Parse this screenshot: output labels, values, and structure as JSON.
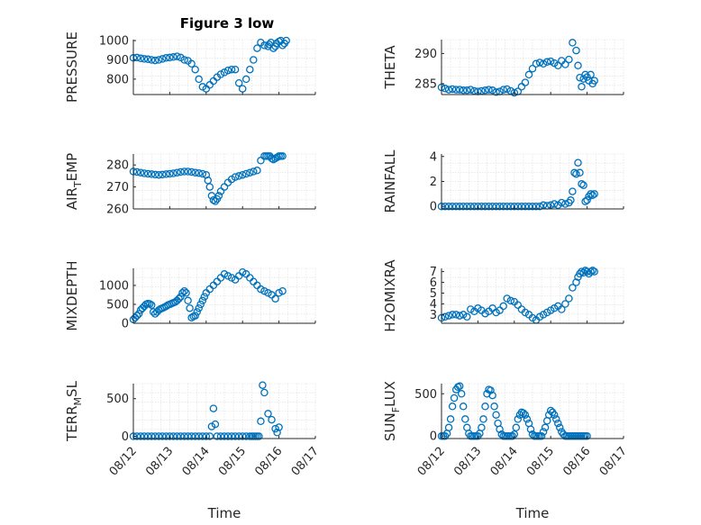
{
  "figure_title": "Figure 3 low",
  "colors": {
    "marker": "#0072BD",
    "axis": "#262626",
    "grid": "#dcdcdc"
  },
  "chart_data": [
    {
      "id": "pressure",
      "type": "scatter",
      "title": "Figure 3 low",
      "ylabel": "PRESSURE",
      "xlabel": "",
      "xlim": [
        0,
        5
      ],
      "ylim": [
        720,
        1005
      ],
      "yticks": [
        800,
        900,
        1000
      ],
      "xticks": [],
      "grid": true,
      "x": [
        0.0,
        0.1,
        0.2,
        0.3,
        0.4,
        0.5,
        0.6,
        0.7,
        0.8,
        0.9,
        1.0,
        1.1,
        1.2,
        1.3,
        1.4,
        1.5,
        1.6,
        1.7,
        1.8,
        1.9,
        2.0,
        2.1,
        2.2,
        2.3,
        2.4,
        2.5,
        2.6,
        2.7,
        2.8,
        2.9,
        3.0,
        3.1,
        3.2,
        3.3,
        3.4,
        3.5,
        3.6,
        3.7,
        3.73,
        3.78,
        3.85,
        3.9,
        3.93,
        4.0,
        4.05,
        4.1,
        4.15,
        4.2
      ],
      "y": [
        910,
        912,
        908,
        905,
        903,
        900,
        897,
        900,
        905,
        910,
        912,
        915,
        918,
        912,
        900,
        895,
        880,
        850,
        800,
        760,
        750,
        770,
        790,
        810,
        825,
        835,
        845,
        850,
        850,
        780,
        750,
        800,
        850,
        900,
        960,
        990,
        975,
        970,
        980,
        990,
        960,
        970,
        985,
        995,
        1000,
        975,
        985,
        1000
      ]
    },
    {
      "id": "theta",
      "type": "scatter",
      "ylabel": "THETA",
      "xlabel": "",
      "xlim": [
        0,
        5
      ],
      "ylim": [
        283.2,
        292.3
      ],
      "yticks": [
        285,
        290
      ],
      "xticks": [],
      "grid": true,
      "x": [
        0.0,
        0.1,
        0.2,
        0.3,
        0.4,
        0.5,
        0.6,
        0.7,
        0.8,
        0.9,
        1.0,
        1.1,
        1.2,
        1.3,
        1.4,
        1.5,
        1.6,
        1.7,
        1.8,
        1.9,
        2.0,
        2.1,
        2.2,
        2.3,
        2.4,
        2.5,
        2.6,
        2.7,
        2.8,
        2.9,
        3.0,
        3.1,
        3.2,
        3.3,
        3.4,
        3.5,
        3.6,
        3.7,
        3.75,
        3.8,
        3.85,
        3.9,
        3.95,
        4.0,
        4.05,
        4.1,
        4.15,
        4.2
      ],
      "y": [
        284.4,
        284.2,
        284.0,
        284.1,
        284.0,
        284.0,
        283.9,
        283.9,
        284.0,
        283.8,
        283.7,
        283.8,
        283.9,
        284.0,
        283.9,
        283.6,
        283.7,
        284.0,
        284.1,
        283.8,
        283.5,
        283.7,
        284.5,
        285.2,
        286.5,
        287.5,
        288.3,
        288.5,
        288.3,
        288.6,
        288.7,
        288.4,
        288.0,
        288.8,
        288.2,
        289.0,
        291.8,
        290.5,
        288.0,
        286.0,
        284.5,
        285.8,
        286.5,
        286.1,
        285.5,
        286.5,
        285.0,
        285.5
      ]
    },
    {
      "id": "air_temp",
      "type": "scatter",
      "ylabel": "AIR_TEMP",
      "ylabel_main": "AIR",
      "ylabel_sub": "T",
      "ylabel_rest": "EMP",
      "xlabel": "",
      "xlim": [
        0,
        5
      ],
      "ylim": [
        260,
        285
      ],
      "yticks": [
        260,
        270,
        280
      ],
      "xticks": [],
      "grid": true,
      "x": [
        0.0,
        0.1,
        0.2,
        0.3,
        0.4,
        0.5,
        0.6,
        0.7,
        0.8,
        0.9,
        1.0,
        1.1,
        1.2,
        1.3,
        1.4,
        1.5,
        1.6,
        1.7,
        1.8,
        1.9,
        2.0,
        2.05,
        2.1,
        2.15,
        2.2,
        2.25,
        2.3,
        2.35,
        2.4,
        2.5,
        2.6,
        2.7,
        2.8,
        2.9,
        3.0,
        3.1,
        3.2,
        3.3,
        3.4,
        3.5,
        3.6,
        3.65,
        3.7,
        3.75,
        3.8,
        3.85,
        3.9,
        3.95,
        4.0,
        4.05,
        4.1
      ],
      "y": [
        277,
        276.8,
        276.5,
        276.2,
        276,
        275.8,
        275.6,
        275.5,
        275.6,
        275.8,
        276,
        276.2,
        276.5,
        276.8,
        277,
        277,
        276.8,
        276.5,
        276.3,
        276,
        275.5,
        273,
        270,
        266,
        264,
        263.5,
        264.5,
        266,
        268,
        270,
        272,
        273.5,
        274.5,
        275,
        275.5,
        276,
        276.5,
        277,
        277.5,
        282,
        284,
        284,
        284,
        284,
        283,
        282.5,
        283,
        283.5,
        284,
        284,
        284
      ]
    },
    {
      "id": "rainfall",
      "type": "scatter",
      "ylabel": "RAINFALL",
      "xlabel": "",
      "xlim": [
        0,
        5
      ],
      "ylim": [
        -0.2,
        4.2
      ],
      "yticks": [
        0,
        2,
        4
      ],
      "xticks": [],
      "grid": true,
      "x": [
        0.0,
        0.1,
        0.2,
        0.3,
        0.4,
        0.5,
        0.6,
        0.7,
        0.8,
        0.9,
        1.0,
        1.1,
        1.2,
        1.3,
        1.4,
        1.5,
        1.6,
        1.7,
        1.8,
        1.9,
        2.0,
        2.1,
        2.2,
        2.3,
        2.4,
        2.5,
        2.6,
        2.7,
        2.8,
        2.9,
        3.0,
        3.1,
        3.2,
        3.3,
        3.4,
        3.5,
        3.55,
        3.6,
        3.65,
        3.7,
        3.75,
        3.8,
        3.85,
        3.9,
        3.95,
        4.0,
        4.05,
        4.1,
        4.15,
        4.2
      ],
      "y": [
        0,
        0,
        0,
        0,
        0,
        0,
        0,
        0,
        0,
        0,
        0,
        0,
        0,
        0,
        0,
        0,
        0,
        0,
        0,
        0,
        0,
        0,
        0,
        0,
        0,
        0,
        0,
        0,
        0.1,
        0.05,
        0.1,
        0.2,
        0.1,
        0.3,
        0.2,
        0.3,
        0.5,
        1.2,
        2.7,
        2.6,
        3.5,
        2.7,
        1.8,
        1.7,
        0.4,
        0.5,
        0.8,
        1.0,
        0.9,
        1.0
      ]
    },
    {
      "id": "mixdepth",
      "type": "scatter",
      "ylabel": "MIXDEPTH",
      "xlabel": "",
      "xlim": [
        0,
        5
      ],
      "ylim": [
        0,
        1450
      ],
      "yticks": [
        0,
        500,
        1000
      ],
      "xticks": [],
      "grid": true,
      "x": [
        0.0,
        0.05,
        0.1,
        0.15,
        0.2,
        0.25,
        0.3,
        0.35,
        0.4,
        0.45,
        0.5,
        0.55,
        0.6,
        0.65,
        0.7,
        0.75,
        0.8,
        0.85,
        0.9,
        0.95,
        1.0,
        1.05,
        1.1,
        1.15,
        1.2,
        1.25,
        1.3,
        1.35,
        1.4,
        1.45,
        1.5,
        1.55,
        1.6,
        1.65,
        1.7,
        1.75,
        1.8,
        1.85,
        1.9,
        1.95,
        2.0,
        2.1,
        2.2,
        2.3,
        2.4,
        2.5,
        2.6,
        2.7,
        2.8,
        2.9,
        3.0,
        3.1,
        3.2,
        3.3,
        3.4,
        3.5,
        3.6,
        3.7,
        3.8,
        3.9,
        4.0,
        4.1
      ],
      "y": [
        100,
        150,
        200,
        250,
        350,
        400,
        450,
        500,
        520,
        510,
        480,
        300,
        250,
        300,
        350,
        380,
        400,
        420,
        450,
        480,
        500,
        520,
        540,
        560,
        600,
        650,
        700,
        800,
        850,
        800,
        600,
        400,
        150,
        180,
        200,
        300,
        400,
        500,
        600,
        700,
        800,
        900,
        1000,
        1100,
        1200,
        1300,
        1250,
        1200,
        1150,
        1250,
        1350,
        1300,
        1200,
        1100,
        1000,
        900,
        850,
        800,
        750,
        650,
        800,
        850
      ]
    },
    {
      "id": "h2omixra",
      "type": "scatter",
      "ylabel": "H2OMIXRA",
      "xlabel": "",
      "xlim": [
        0,
        5
      ],
      "ylim": [
        2.2,
        7.3
      ],
      "yticks": [
        3,
        4,
        5,
        6,
        7
      ],
      "xticks": [],
      "grid": true,
      "x": [
        0.0,
        0.1,
        0.2,
        0.3,
        0.4,
        0.5,
        0.6,
        0.7,
        0.8,
        0.9,
        1.0,
        1.1,
        1.2,
        1.3,
        1.4,
        1.5,
        1.6,
        1.7,
        1.8,
        1.9,
        2.0,
        2.1,
        2.2,
        2.3,
        2.4,
        2.5,
        2.6,
        2.7,
        2.8,
        2.9,
        3.0,
        3.1,
        3.2,
        3.3,
        3.4,
        3.5,
        3.6,
        3.7,
        3.75,
        3.8,
        3.85,
        3.9,
        3.95,
        4.0,
        4.05,
        4.1,
        4.15,
        4.2
      ],
      "y": [
        2.7,
        2.8,
        2.9,
        3.0,
        3.0,
        2.9,
        3.0,
        2.8,
        3.5,
        3.3,
        3.6,
        3.4,
        3.1,
        3.3,
        3.6,
        3.2,
        3.4,
        3.8,
        4.5,
        4.3,
        4.2,
        3.9,
        3.5,
        3.2,
        3.0,
        2.7,
        2.5,
        2.8,
        3.0,
        3.2,
        3.4,
        3.6,
        3.8,
        3.5,
        4.0,
        4.5,
        5.5,
        6.0,
        6.5,
        6.8,
        7.0,
        6.9,
        7.1,
        7.0,
        6.8,
        7.0,
        7.1,
        7.0
      ]
    },
    {
      "id": "terr_msl",
      "type": "scatter",
      "ylabel": "TERR_MSL",
      "ylabel_main": "TERR",
      "ylabel_sub": "M",
      "ylabel_rest": "SL",
      "xlabel": "Time",
      "xlim": [
        0,
        5
      ],
      "ylim": [
        -30,
        700
      ],
      "yticks": [
        0,
        500
      ],
      "xticks": [
        "08/12",
        "08/13",
        "08/14",
        "08/15",
        "08/16",
        "08/17"
      ],
      "grid": true,
      "x": [
        0.0,
        0.1,
        0.2,
        0.3,
        0.4,
        0.5,
        0.6,
        0.7,
        0.8,
        0.9,
        1.0,
        1.1,
        1.2,
        1.3,
        1.4,
        1.5,
        1.6,
        1.7,
        1.8,
        1.9,
        2.0,
        2.1,
        2.15,
        2.2,
        2.25,
        2.3,
        2.4,
        2.5,
        2.6,
        2.7,
        2.8,
        2.9,
        3.0,
        3.1,
        3.2,
        3.25,
        3.3,
        3.35,
        3.4,
        3.45,
        3.5,
        3.55,
        3.6,
        3.7,
        3.8,
        3.9,
        3.95,
        4.0
      ],
      "y": [
        0,
        0,
        0,
        0,
        0,
        0,
        0,
        0,
        0,
        0,
        0,
        0,
        0,
        0,
        0,
        0,
        0,
        0,
        0,
        0,
        0,
        0,
        130,
        370,
        160,
        0,
        0,
        0,
        0,
        0,
        0,
        0,
        0,
        0,
        0,
        0,
        0,
        0,
        0,
        0,
        200,
        680,
        580,
        300,
        220,
        100,
        50,
        120
      ]
    },
    {
      "id": "sun_flux",
      "type": "scatter",
      "ylabel": "SUN_FLUX",
      "ylabel_main": "SUN",
      "ylabel_sub": "F",
      "ylabel_rest": "LUX",
      "xlabel": "Time",
      "xlim": [
        0,
        5
      ],
      "ylim": [
        -30,
        620
      ],
      "yticks": [
        0,
        500
      ],
      "xticks": [
        "08/12",
        "08/13",
        "08/14",
        "08/15",
        "08/16",
        "08/17"
      ],
      "grid": true,
      "x": [
        0.0,
        0.05,
        0.1,
        0.15,
        0.2,
        0.25,
        0.3,
        0.35,
        0.4,
        0.45,
        0.5,
        0.55,
        0.6,
        0.65,
        0.7,
        0.75,
        0.8,
        0.85,
        0.9,
        0.95,
        1.0,
        1.05,
        1.1,
        1.15,
        1.2,
        1.25,
        1.3,
        1.35,
        1.4,
        1.45,
        1.5,
        1.55,
        1.6,
        1.65,
        1.7,
        1.75,
        1.8,
        1.85,
        1.9,
        1.95,
        2.0,
        2.05,
        2.1,
        2.15,
        2.2,
        2.25,
        2.3,
        2.35,
        2.4,
        2.45,
        2.5,
        2.55,
        2.6,
        2.65,
        2.7,
        2.75,
        2.8,
        2.85,
        2.9,
        2.95,
        3.0,
        3.05,
        3.1,
        3.15,
        3.2,
        3.25,
        3.3,
        3.35,
        3.4,
        3.45,
        3.5,
        3.55,
        3.6,
        3.65,
        3.7,
        3.75,
        3.8,
        3.85,
        3.9,
        3.95,
        4.0
      ],
      "y": [
        0,
        0,
        0,
        30,
        100,
        200,
        350,
        450,
        550,
        580,
        590,
        500,
        350,
        200,
        100,
        30,
        0,
        0,
        0,
        0,
        0,
        30,
        100,
        200,
        350,
        500,
        550,
        540,
        480,
        350,
        250,
        150,
        80,
        20,
        0,
        0,
        0,
        0,
        0,
        0,
        20,
        100,
        200,
        250,
        280,
        270,
        250,
        200,
        150,
        80,
        20,
        0,
        0,
        0,
        0,
        0,
        50,
        100,
        180,
        250,
        300,
        280,
        250,
        200,
        150,
        100,
        50,
        20,
        0,
        0,
        0,
        0,
        0,
        0,
        0,
        0,
        0,
        0,
        0,
        0,
        0
      ]
    }
  ]
}
